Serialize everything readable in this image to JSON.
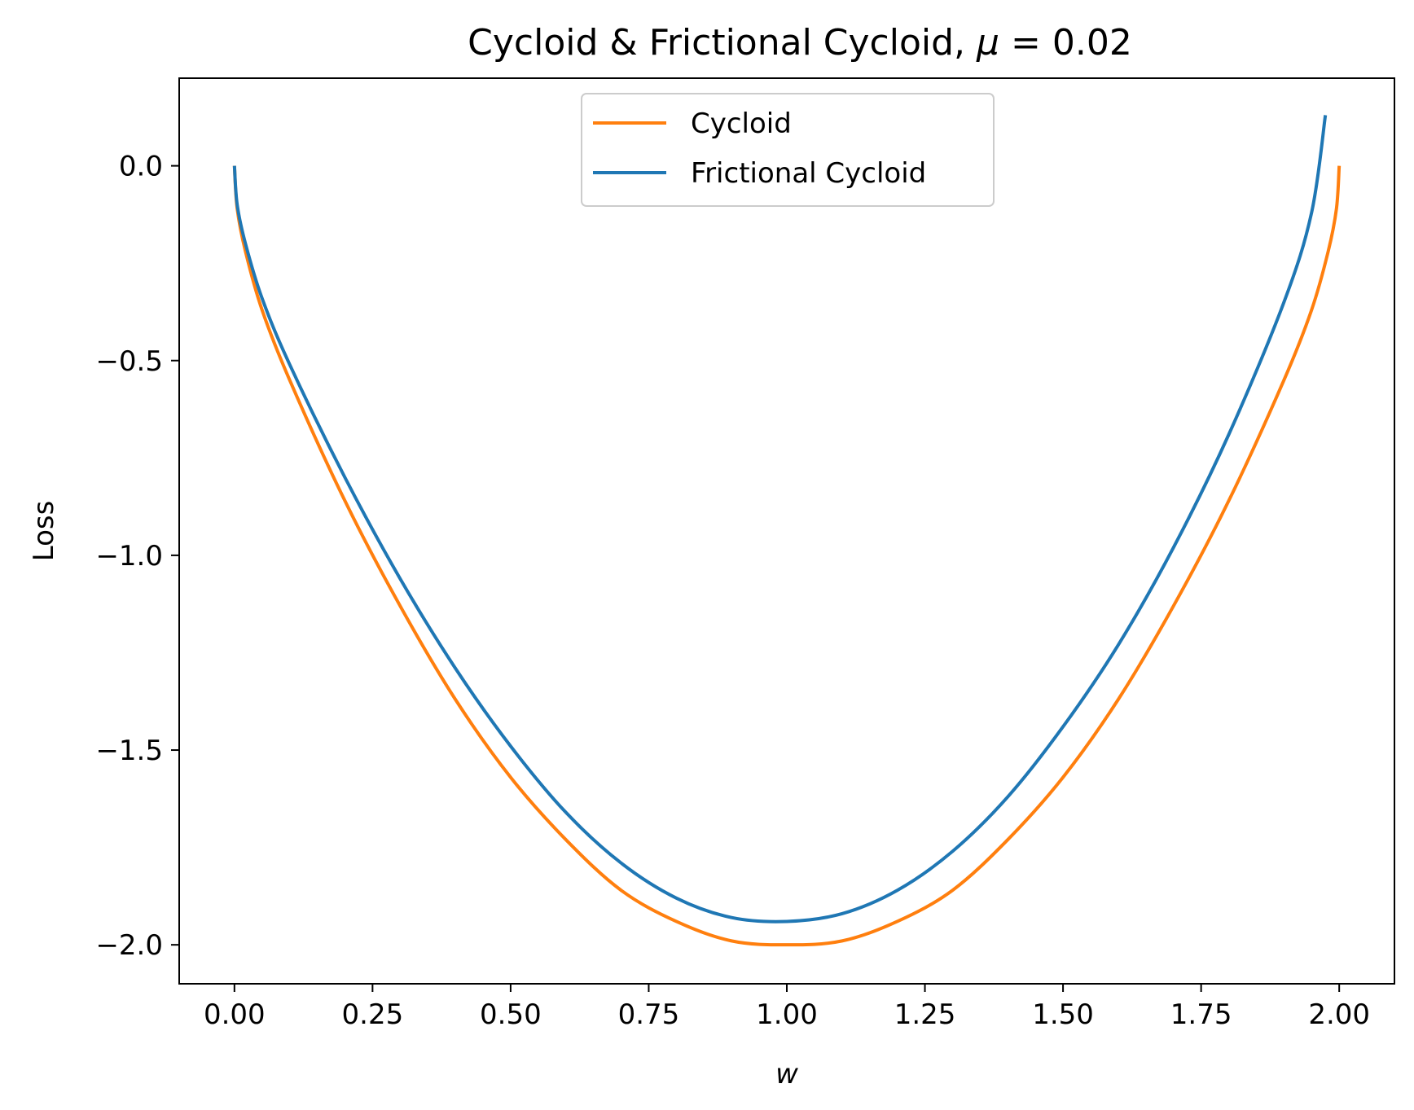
{
  "chart_data": {
    "type": "line",
    "title": "Cycloid & Frictional Cycloid, μ = 0.02",
    "title_prefix": "Cycloid & Frictional Cycloid, ",
    "title_symbol": "μ",
    "title_suffix": " = 0.02",
    "mu": 0.02,
    "xlabel": "w",
    "ylabel": "Loss",
    "xlim": [
      -0.1,
      2.1
    ],
    "ylim": [
      -2.1,
      0.225
    ],
    "xticks": [
      0.0,
      0.25,
      0.5,
      0.75,
      1.0,
      1.25,
      1.5,
      1.75,
      2.0
    ],
    "xtick_labels": [
      "0.00",
      "0.25",
      "0.50",
      "0.75",
      "1.00",
      "1.25",
      "1.50",
      "1.75",
      "2.00"
    ],
    "yticks": [
      0.0,
      -0.5,
      -1.0,
      -1.5,
      -2.0
    ],
    "ytick_labels": [
      "0.0",
      "−0.5",
      "−1.0",
      "−1.5",
      "−2.0"
    ],
    "grid": false,
    "legend_position": "top-center",
    "series": [
      {
        "name": "Cycloid",
        "color": "#ff7f0e",
        "points": [
          [
            0.0,
            0.0
          ],
          [
            0.005,
            -0.11
          ],
          [
            0.02,
            -0.22
          ],
          [
            0.05,
            -0.37
          ],
          [
            0.1,
            -0.55
          ],
          [
            0.2,
            -0.86
          ],
          [
            0.3,
            -1.13
          ],
          [
            0.4,
            -1.37
          ],
          [
            0.5,
            -1.57
          ],
          [
            0.6,
            -1.73
          ],
          [
            0.7,
            -1.86
          ],
          [
            0.8,
            -1.94
          ],
          [
            0.9,
            -1.99
          ],
          [
            1.0,
            -2.0
          ],
          [
            1.1,
            -1.99
          ],
          [
            1.2,
            -1.94
          ],
          [
            1.3,
            -1.86
          ],
          [
            1.4,
            -1.73
          ],
          [
            1.5,
            -1.57
          ],
          [
            1.6,
            -1.37
          ],
          [
            1.7,
            -1.13
          ],
          [
            1.8,
            -0.86
          ],
          [
            1.9,
            -0.55
          ],
          [
            1.95,
            -0.37
          ],
          [
            1.98,
            -0.22
          ],
          [
            1.995,
            -0.11
          ],
          [
            2.0,
            0.0
          ]
        ]
      },
      {
        "name": "Frictional Cycloid",
        "color": "#1f77b4",
        "points": [
          [
            0.0,
            0.0
          ],
          [
            0.005,
            -0.1
          ],
          [
            0.02,
            -0.2
          ],
          [
            0.05,
            -0.34
          ],
          [
            0.1,
            -0.51
          ],
          [
            0.2,
            -0.8
          ],
          [
            0.3,
            -1.06
          ],
          [
            0.4,
            -1.29
          ],
          [
            0.5,
            -1.49
          ],
          [
            0.6,
            -1.66
          ],
          [
            0.7,
            -1.79
          ],
          [
            0.8,
            -1.88
          ],
          [
            0.9,
            -1.93
          ],
          [
            1.0,
            -1.94
          ],
          [
            1.1,
            -1.92
          ],
          [
            1.2,
            -1.86
          ],
          [
            1.3,
            -1.76
          ],
          [
            1.4,
            -1.62
          ],
          [
            1.5,
            -1.44
          ],
          [
            1.6,
            -1.23
          ],
          [
            1.7,
            -0.98
          ],
          [
            1.8,
            -0.69
          ],
          [
            1.9,
            -0.35
          ],
          [
            1.95,
            -0.12
          ],
          [
            1.975,
            0.13
          ]
        ]
      }
    ]
  }
}
